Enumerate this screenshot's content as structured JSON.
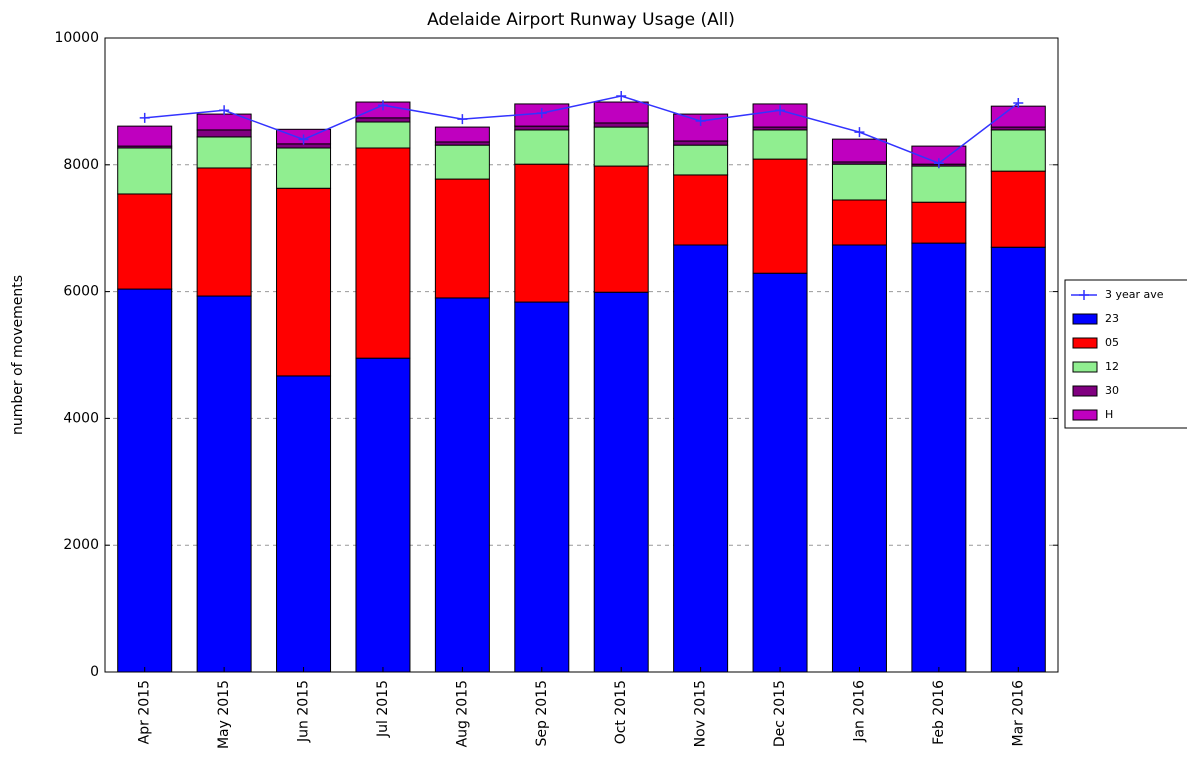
{
  "chart_data": {
    "type": "bar",
    "stacked": true,
    "title": "Adelaide Airport Runway Usage (All)",
    "y_label": "number of movements",
    "categories": [
      "Apr 2015",
      "May 2015",
      "Jun 2015",
      "Jul 2015",
      "Aug 2015",
      "Sep 2015",
      "Oct 2015",
      "Nov 2015",
      "Dec 2015",
      "Jan 2016",
      "Feb 2016",
      "Mar 2016"
    ],
    "series": [
      {
        "name": "3 year ave",
        "type": "line",
        "color": "#3333ff",
        "values": [
          8740,
          8860,
          8400,
          8940,
          8720,
          8815,
          9085,
          8690,
          8860,
          8515,
          8025,
          8975
        ]
      },
      {
        "name": "23",
        "color": "#0000ff",
        "values": [
          6040,
          5930,
          4670,
          4950,
          5900,
          5835,
          5990,
          6735,
          6290,
          6735,
          6765,
          6700
        ]
      },
      {
        "name": "05",
        "color": "#ff0000",
        "values": [
          1500,
          2020,
          2960,
          3315,
          1875,
          2175,
          1990,
          1105,
          1800,
          710,
          645,
          1200
        ]
      },
      {
        "name": "12",
        "color": "#90ee90",
        "values": [
          725,
          490,
          635,
          410,
          535,
          540,
          615,
          470,
          460,
          565,
          570,
          650
        ]
      },
      {
        "name": "30",
        "color": "#800080",
        "values": [
          30,
          110,
          65,
          65,
          50,
          60,
          65,
          65,
          45,
          35,
          30,
          45
        ]
      },
      {
        "name": "H",
        "color": "#bf00bf",
        "values": [
          315,
          250,
          230,
          250,
          235,
          350,
          330,
          425,
          365,
          360,
          285,
          330
        ]
      }
    ],
    "ylim": [
      0,
      10000
    ],
    "yticks": [
      0,
      2000,
      4000,
      6000,
      8000,
      10000
    ],
    "grid": true,
    "legend": "outside right"
  }
}
